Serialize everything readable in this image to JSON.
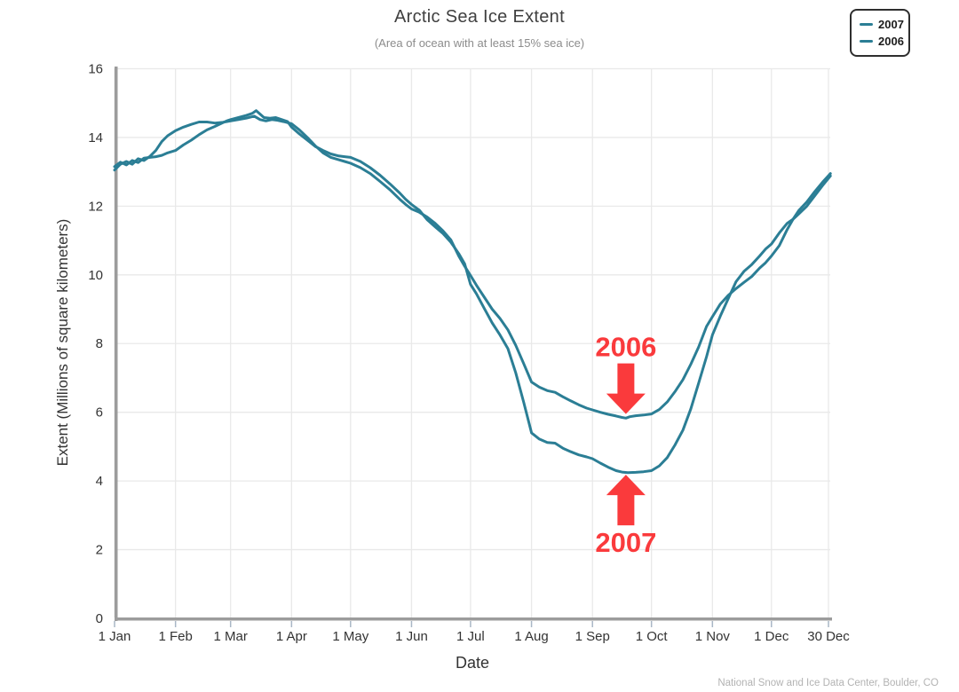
{
  "header": {
    "title": "Arctic Sea Ice Extent",
    "subtitle": "(Area of ocean with at least 15% sea ice)"
  },
  "legend": {
    "items": [
      {
        "label": "2007"
      },
      {
        "label": "2006"
      }
    ]
  },
  "footer": {
    "attribution": "National Snow and Ice Data Center, Boulder, CO"
  },
  "colors": {
    "line": "#2b7e95",
    "annotation": "#fa3a3c",
    "axis": "#9c9c9c",
    "grid": "#e9e9e9",
    "tick": "#a9b7c6",
    "text": "#333333"
  },
  "chart_data": {
    "type": "line",
    "title": "Arctic Sea Ice Extent",
    "subtitle": "(Area of ocean with at least 15% sea ice)",
    "xlabel": "Date",
    "ylabel": "Extent (Millions of square kilometers)",
    "x_unit": "day_of_year",
    "ylim": [
      0,
      16
    ],
    "y_ticks": [
      0,
      2,
      4,
      6,
      8,
      10,
      12,
      14,
      16
    ],
    "x_ticks": [
      {
        "day": 1,
        "label": "1 Jan"
      },
      {
        "day": 32,
        "label": "1 Feb"
      },
      {
        "day": 60,
        "label": "1 Mar"
      },
      {
        "day": 91,
        "label": "1 Apr"
      },
      {
        "day": 121,
        "label": "1 May"
      },
      {
        "day": 152,
        "label": "1 Jun"
      },
      {
        "day": 182,
        "label": "1 Jul"
      },
      {
        "day": 213,
        "label": "1 Aug"
      },
      {
        "day": 244,
        "label": "1 Sep"
      },
      {
        "day": 274,
        "label": "1 Oct"
      },
      {
        "day": 305,
        "label": "1 Nov"
      },
      {
        "day": 335,
        "label": "1 Dec"
      },
      {
        "day": 364,
        "label": "30 Dec"
      }
    ],
    "grid": true,
    "legend_position": "top-right",
    "line_color": "#2b7e95",
    "annotation_color": "#fa3a3c",
    "series": [
      {
        "name": "2007",
        "color": "#2b7e95",
        "points": [
          [
            1,
            13.15
          ],
          [
            4,
            13.28
          ],
          [
            7,
            13.2
          ],
          [
            10,
            13.33
          ],
          [
            13,
            13.27
          ],
          [
            16,
            13.4
          ],
          [
            19,
            13.42
          ],
          [
            22,
            13.44
          ],
          [
            25,
            13.48
          ],
          [
            28,
            13.55
          ],
          [
            32,
            13.62
          ],
          [
            36,
            13.78
          ],
          [
            40,
            13.92
          ],
          [
            44,
            14.08
          ],
          [
            48,
            14.22
          ],
          [
            52,
            14.32
          ],
          [
            55,
            14.4
          ],
          [
            58,
            14.48
          ],
          [
            60,
            14.52
          ],
          [
            64,
            14.58
          ],
          [
            68,
            14.64
          ],
          [
            71,
            14.7
          ],
          [
            73,
            14.78
          ],
          [
            75,
            14.68
          ],
          [
            77,
            14.58
          ],
          [
            80,
            14.56
          ],
          [
            83,
            14.58
          ],
          [
            86,
            14.52
          ],
          [
            89,
            14.46
          ],
          [
            91,
            14.3
          ],
          [
            95,
            14.1
          ],
          [
            99,
            13.92
          ],
          [
            103,
            13.74
          ],
          [
            107,
            13.62
          ],
          [
            111,
            13.52
          ],
          [
            115,
            13.46
          ],
          [
            118,
            13.44
          ],
          [
            121,
            13.42
          ],
          [
            126,
            13.3
          ],
          [
            131,
            13.12
          ],
          [
            136,
            12.9
          ],
          [
            141,
            12.65
          ],
          [
            146,
            12.38
          ],
          [
            149,
            12.2
          ],
          [
            152,
            12.05
          ],
          [
            156,
            11.88
          ],
          [
            160,
            11.6
          ],
          [
            164,
            11.4
          ],
          [
            168,
            11.2
          ],
          [
            172,
            10.95
          ],
          [
            176,
            10.62
          ],
          [
            179,
            10.32
          ],
          [
            182,
            9.72
          ],
          [
            185,
            9.45
          ],
          [
            189,
            9.02
          ],
          [
            193,
            8.6
          ],
          [
            197,
            8.25
          ],
          [
            201,
            7.85
          ],
          [
            205,
            7.15
          ],
          [
            209,
            6.3
          ],
          [
            213,
            5.4
          ],
          [
            217,
            5.22
          ],
          [
            221,
            5.12
          ],
          [
            225,
            5.1
          ],
          [
            229,
            4.95
          ],
          [
            233,
            4.85
          ],
          [
            237,
            4.76
          ],
          [
            241,
            4.7
          ],
          [
            244,
            4.65
          ],
          [
            248,
            4.52
          ],
          [
            252,
            4.4
          ],
          [
            256,
            4.3
          ],
          [
            259,
            4.26
          ],
          [
            262,
            4.24
          ],
          [
            266,
            4.25
          ],
          [
            270,
            4.27
          ],
          [
            274,
            4.3
          ],
          [
            278,
            4.44
          ],
          [
            282,
            4.68
          ],
          [
            286,
            5.05
          ],
          [
            290,
            5.48
          ],
          [
            294,
            6.1
          ],
          [
            298,
            6.85
          ],
          [
            302,
            7.62
          ],
          [
            305,
            8.25
          ],
          [
            309,
            8.8
          ],
          [
            313,
            9.3
          ],
          [
            317,
            9.8
          ],
          [
            321,
            10.1
          ],
          [
            325,
            10.3
          ],
          [
            329,
            10.55
          ],
          [
            332,
            10.75
          ],
          [
            335,
            10.9
          ],
          [
            339,
            11.22
          ],
          [
            343,
            11.5
          ],
          [
            346,
            11.62
          ],
          [
            349,
            11.78
          ],
          [
            353,
            12.0
          ],
          [
            357,
            12.3
          ],
          [
            361,
            12.6
          ],
          [
            365,
            12.88
          ]
        ]
      },
      {
        "name": "2006",
        "color": "#2b7e95",
        "points": [
          [
            1,
            13.05
          ],
          [
            4,
            13.22
          ],
          [
            7,
            13.3
          ],
          [
            10,
            13.22
          ],
          [
            13,
            13.38
          ],
          [
            16,
            13.33
          ],
          [
            19,
            13.45
          ],
          [
            22,
            13.62
          ],
          [
            25,
            13.88
          ],
          [
            28,
            14.05
          ],
          [
            32,
            14.2
          ],
          [
            36,
            14.3
          ],
          [
            40,
            14.38
          ],
          [
            44,
            14.45
          ],
          [
            48,
            14.45
          ],
          [
            52,
            14.42
          ],
          [
            56,
            14.44
          ],
          [
            60,
            14.48
          ],
          [
            64,
            14.52
          ],
          [
            68,
            14.56
          ],
          [
            72,
            14.62
          ],
          [
            75,
            14.52
          ],
          [
            78,
            14.48
          ],
          [
            81,
            14.52
          ],
          [
            84,
            14.5
          ],
          [
            87,
            14.46
          ],
          [
            91,
            14.4
          ],
          [
            95,
            14.22
          ],
          [
            99,
            14.0
          ],
          [
            103,
            13.76
          ],
          [
            107,
            13.55
          ],
          [
            111,
            13.42
          ],
          [
            115,
            13.35
          ],
          [
            118,
            13.3
          ],
          [
            121,
            13.25
          ],
          [
            126,
            13.12
          ],
          [
            131,
            12.95
          ],
          [
            136,
            12.72
          ],
          [
            141,
            12.48
          ],
          [
            146,
            12.2
          ],
          [
            149,
            12.05
          ],
          [
            152,
            11.92
          ],
          [
            156,
            11.82
          ],
          [
            160,
            11.68
          ],
          [
            164,
            11.5
          ],
          [
            168,
            11.28
          ],
          [
            172,
            11.02
          ],
          [
            176,
            10.55
          ],
          [
            179,
            10.25
          ],
          [
            182,
            9.98
          ],
          [
            185,
            9.7
          ],
          [
            189,
            9.35
          ],
          [
            193,
            9.0
          ],
          [
            197,
            8.73
          ],
          [
            201,
            8.4
          ],
          [
            205,
            7.95
          ],
          [
            209,
            7.42
          ],
          [
            213,
            6.88
          ],
          [
            217,
            6.73
          ],
          [
            221,
            6.63
          ],
          [
            225,
            6.58
          ],
          [
            229,
            6.45
          ],
          [
            233,
            6.33
          ],
          [
            237,
            6.22
          ],
          [
            241,
            6.12
          ],
          [
            244,
            6.07
          ],
          [
            248,
            6.0
          ],
          [
            252,
            5.94
          ],
          [
            256,
            5.89
          ],
          [
            259,
            5.85
          ],
          [
            261,
            5.83
          ],
          [
            263,
            5.87
          ],
          [
            266,
            5.9
          ],
          [
            270,
            5.92
          ],
          [
            274,
            5.95
          ],
          [
            278,
            6.08
          ],
          [
            282,
            6.3
          ],
          [
            286,
            6.6
          ],
          [
            290,
            6.95
          ],
          [
            294,
            7.4
          ],
          [
            298,
            7.9
          ],
          [
            302,
            8.5
          ],
          [
            305,
            8.78
          ],
          [
            309,
            9.15
          ],
          [
            313,
            9.4
          ],
          [
            317,
            9.6
          ],
          [
            321,
            9.78
          ],
          [
            325,
            9.95
          ],
          [
            329,
            10.2
          ],
          [
            332,
            10.35
          ],
          [
            335,
            10.55
          ],
          [
            339,
            10.85
          ],
          [
            343,
            11.32
          ],
          [
            346,
            11.62
          ],
          [
            349,
            11.88
          ],
          [
            353,
            12.12
          ],
          [
            357,
            12.42
          ],
          [
            361,
            12.7
          ],
          [
            365,
            12.95
          ]
        ]
      }
    ],
    "annotations": [
      {
        "text": "2006",
        "arrow": "down",
        "day": 261,
        "tip_value": 5.95
      },
      {
        "text": "2007",
        "arrow": "up",
        "day": 261,
        "tip_value": 4.18
      }
    ]
  }
}
